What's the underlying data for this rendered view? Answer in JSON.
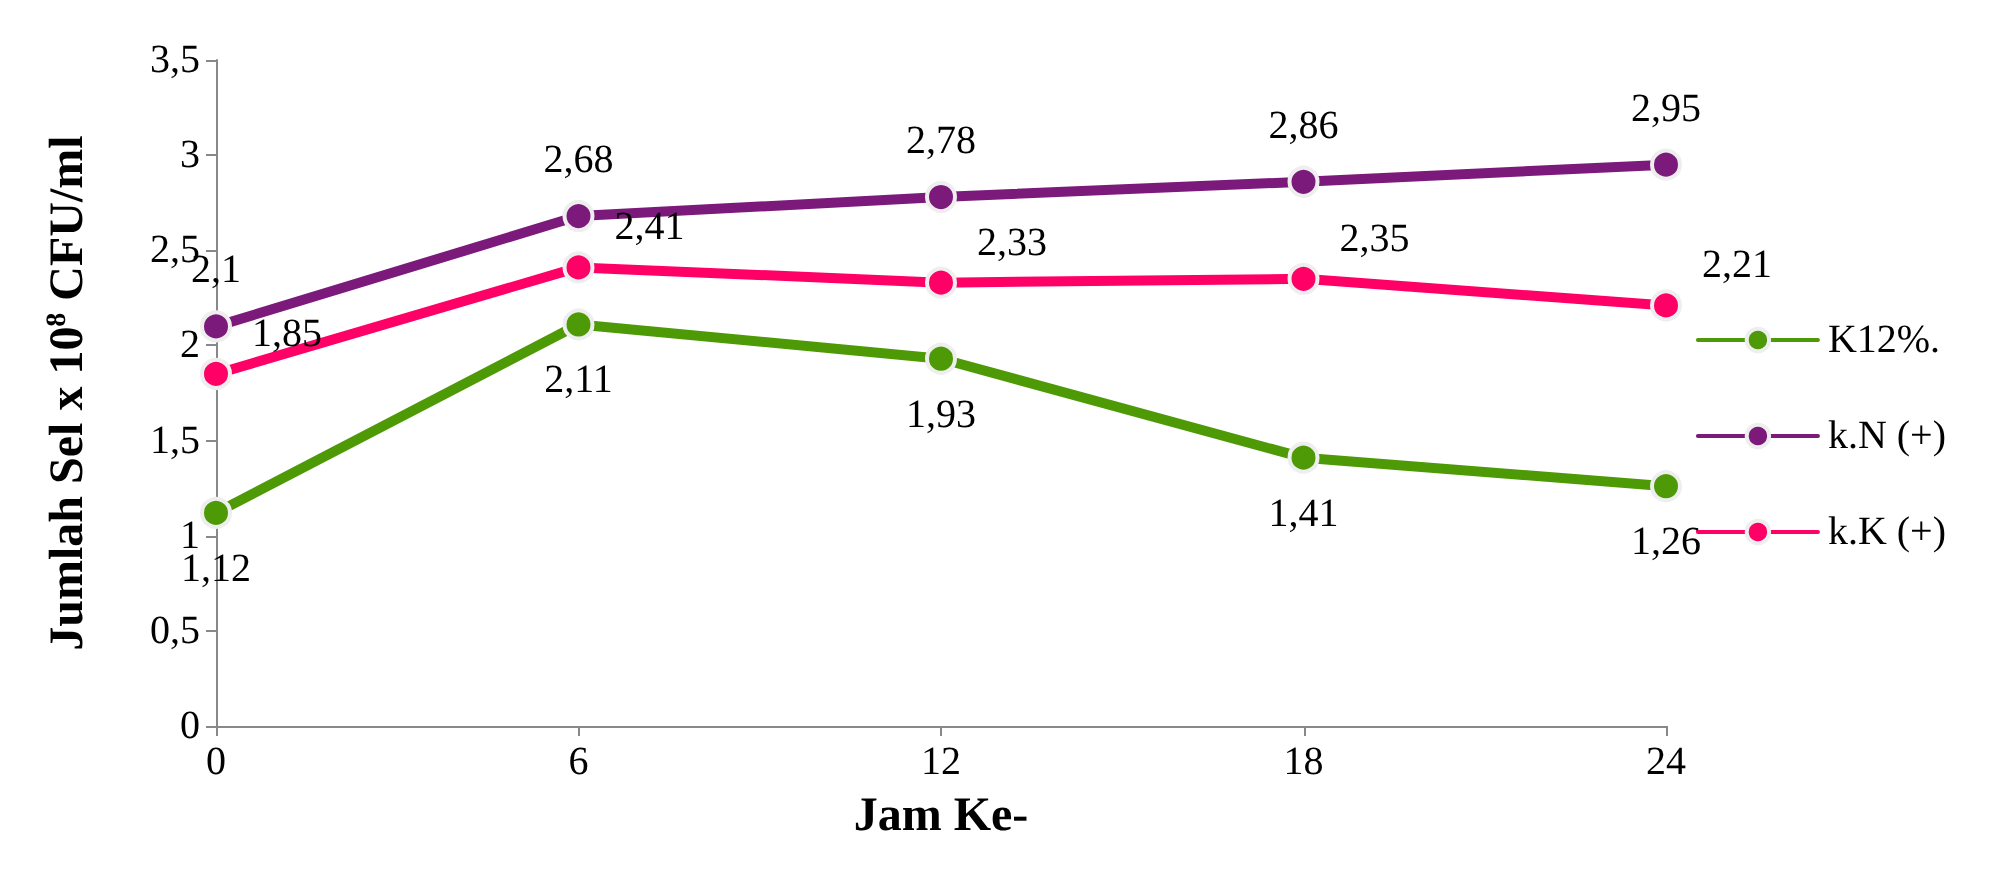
{
  "chart_data": {
    "type": "line",
    "xlabel": "Jam Ke-",
    "ylabel": "Jumlah Sel x 10$^{8}$ CFU/ml",
    "x": [
      0,
      6,
      12,
      18,
      24
    ],
    "xlim": [
      0,
      24
    ],
    "xticks": [
      0,
      6,
      12,
      18,
      24
    ],
    "ylim": [
      0,
      3.5
    ],
    "yticks": [
      0,
      {
        "value": 0.5,
        "label": "0,5"
      },
      1,
      {
        "value": 1.5,
        "label": "1,5"
      },
      2,
      {
        "value": 2.5,
        "label": "2,5"
      },
      3,
      {
        "value": 3.5,
        "label": "3,5"
      }
    ],
    "series": [
      {
        "name": "K12%.",
        "color": "#4e9a06",
        "values": [
          1.12,
          2.11,
          1.93,
          1.41,
          1.26
        ],
        "value_labels": [
          "1,12",
          "2,11",
          "1,93",
          "1,41",
          "1,26"
        ]
      },
      {
        "name": "k.N (+)",
        "color": "#7b1a7b",
        "values": [
          2.1,
          2.68,
          2.78,
          2.86,
          2.95
        ],
        "value_labels": [
          "2,1",
          "2,68",
          "2,78",
          "2,86",
          "2,95"
        ]
      },
      {
        "name": "k.K (+)",
        "color": "#ff0066",
        "values": [
          1.85,
          2.41,
          2.33,
          2.35,
          2.21
        ],
        "value_labels": [
          "1,85",
          "2,41",
          "2,33",
          "2,35",
          "2,21"
        ]
      }
    ],
    "grid": false,
    "legend": "right",
    "marker": "circle",
    "line_style": "solid"
  }
}
